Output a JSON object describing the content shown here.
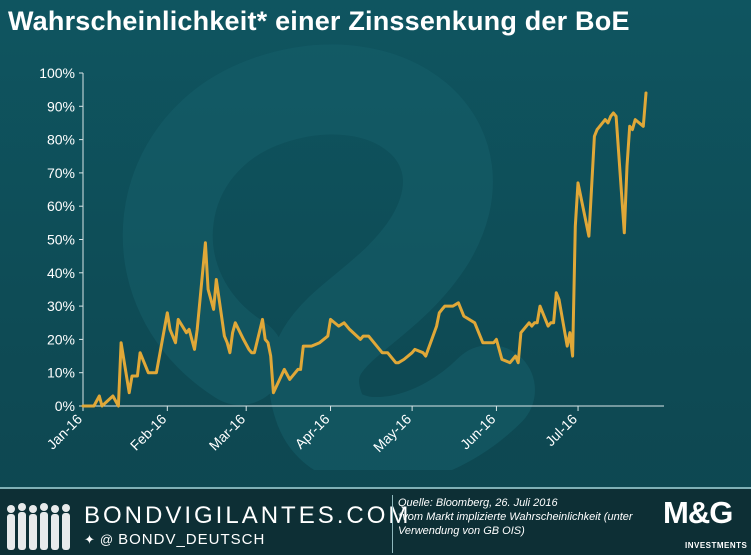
{
  "header": {
    "title": "Wahrscheinlichkeit* einer Zinssenkung der BoE"
  },
  "footer": {
    "brand": "BONDVIGILANTES.COM",
    "social_icons": [
      "twitter-icon",
      "at-icon"
    ],
    "social_handle": "BONDV_DEUTSCH",
    "source_line1": "Quelle: Bloomberg, 26. Juli 2016",
    "source_line2": "*vom Markt implizierte Wahrscheinlichkeit (unter Verwendung von GB OIS)",
    "logo_mark": "M&G",
    "logo_sub": "INVESTMENTS"
  },
  "colors": {
    "background": "#0f5058",
    "line": "#e0a838",
    "axis_text": "#ffffff",
    "footer_bg": "#0d2f35"
  },
  "chart_data": {
    "type": "line",
    "title": "Wahrscheinlichkeit* einer Zinssenkung der BoE",
    "xlabel": "",
    "ylabel": "",
    "ylim": [
      0,
      100
    ],
    "y_ticks": [
      "0%",
      "10%",
      "20%",
      "30%",
      "40%",
      "50%",
      "60%",
      "70%",
      "80%",
      "90%",
      "100%"
    ],
    "x_ticks": [
      "Jan-16",
      "Feb-16",
      "Mar-16",
      "Apr-16",
      "May-16",
      "Jun-16",
      "Jul-16"
    ],
    "grid": false,
    "legend": "none",
    "series": [
      {
        "x": [
          "2016-01-01",
          "2016-01-05",
          "2016-01-07",
          "2016-01-08",
          "2016-01-12",
          "2016-01-14",
          "2016-01-15",
          "2016-01-18",
          "2016-01-19",
          "2016-01-21",
          "2016-01-22",
          "2016-01-25",
          "2016-01-27",
          "2016-01-28",
          "2016-02-01",
          "2016-02-02",
          "2016-02-04",
          "2016-02-05",
          "2016-02-08",
          "2016-02-09",
          "2016-02-10",
          "2016-02-11",
          "2016-02-12",
          "2016-02-15",
          "2016-02-16",
          "2016-02-18",
          "2016-02-19",
          "2016-02-22",
          "2016-02-23",
          "2016-02-24",
          "2016-02-25",
          "2016-02-26",
          "2016-02-29",
          "2016-03-02",
          "2016-03-03",
          "2016-03-04",
          "2016-03-07",
          "2016-03-08",
          "2016-03-09",
          "2016-03-10",
          "2016-03-11",
          "2016-03-15",
          "2016-03-17",
          "2016-03-20",
          "2016-03-21",
          "2016-03-22",
          "2016-03-23",
          "2016-03-25",
          "2016-03-28",
          "2016-03-31",
          "2016-04-01",
          "2016-04-04",
          "2016-04-06",
          "2016-04-08",
          "2016-04-12",
          "2016-04-13",
          "2016-04-15",
          "2016-04-20",
          "2016-04-22",
          "2016-04-25",
          "2016-04-26",
          "2016-04-28",
          "2016-05-01",
          "2016-05-02",
          "2016-05-05",
          "2016-05-06",
          "2016-05-10",
          "2016-05-11",
          "2016-05-12",
          "2016-05-13",
          "2016-05-16",
          "2016-05-18",
          "2016-05-20",
          "2016-05-24",
          "2016-05-26",
          "2016-05-27",
          "2016-05-31",
          "2016-06-01",
          "2016-06-03",
          "2016-06-06",
          "2016-06-08",
          "2016-06-09",
          "2016-06-10",
          "2016-06-13",
          "2016-06-14",
          "2016-06-15",
          "2016-06-16",
          "2016-06-17",
          "2016-06-20",
          "2016-06-21",
          "2016-06-22",
          "2016-06-23",
          "2016-06-24",
          "2016-06-27",
          "2016-06-28",
          "2016-06-29",
          "2016-06-30",
          "2016-07-01",
          "2016-07-05",
          "2016-07-07",
          "2016-07-08",
          "2016-07-11",
          "2016-07-12",
          "2016-07-13",
          "2016-07-14",
          "2016-07-15",
          "2016-07-18",
          "2016-07-19",
          "2016-07-20",
          "2016-07-21",
          "2016-07-22",
          "2016-07-25",
          "2016-07-26"
        ],
        "y": [
          0,
          0,
          3,
          0,
          3,
          0,
          19,
          4,
          9,
          9,
          16,
          10,
          10,
          10,
          28,
          23,
          19,
          26,
          22,
          23,
          20,
          17,
          23,
          49,
          35,
          29,
          38,
          21,
          19,
          16,
          22,
          25,
          20,
          17,
          16,
          16,
          26,
          20,
          19,
          15,
          4,
          11,
          8,
          11,
          11,
          18,
          18,
          18,
          19,
          21,
          26,
          24,
          25,
          23,
          20,
          21,
          21,
          16,
          16,
          13,
          13,
          14,
          16,
          17,
          16,
          15,
          24,
          28,
          29,
          30,
          30,
          31,
          27,
          25,
          21,
          19,
          19,
          20,
          14,
          13,
          15,
          13,
          22,
          25,
          24,
          25,
          25,
          30,
          24,
          25,
          25,
          34,
          32,
          18,
          22,
          15,
          54,
          67,
          51,
          81,
          83,
          86,
          85,
          87,
          88,
          87,
          52,
          72,
          84,
          83,
          86,
          84,
          94
        ]
      }
    ]
  }
}
